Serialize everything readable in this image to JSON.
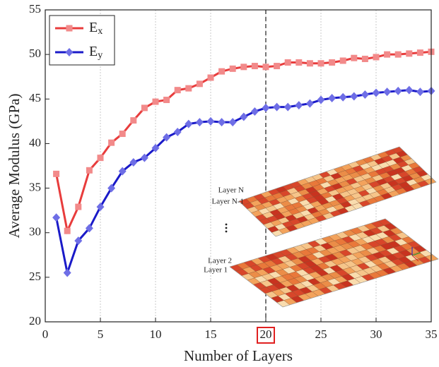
{
  "chart_data": {
    "type": "line",
    "x_label": "Number of Layers",
    "y_label": "Average Modulus (GPa)",
    "x": [
      1,
      2,
      3,
      4,
      5,
      6,
      7,
      8,
      9,
      10,
      11,
      12,
      13,
      14,
      15,
      16,
      17,
      18,
      19,
      20,
      21,
      22,
      23,
      24,
      25,
      26,
      27,
      28,
      29,
      30,
      31,
      32,
      33,
      34,
      35
    ],
    "series": [
      {
        "name": "Ex",
        "color": "#e83c3c",
        "marker_color": "#f28a8a",
        "marker": "square",
        "values": [
          36.6,
          30.2,
          32.9,
          37.0,
          38.4,
          40.1,
          41.1,
          42.6,
          44.0,
          44.7,
          44.9,
          46.0,
          46.2,
          46.7,
          47.4,
          48.1,
          48.4,
          48.6,
          48.7,
          48.6,
          48.7,
          49.1,
          49.1,
          49.0,
          49.0,
          49.1,
          49.3,
          49.6,
          49.5,
          49.7,
          50.0,
          50.0,
          50.1,
          50.2,
          50.3
        ]
      },
      {
        "name": "Ey",
        "color": "#1a1ac8",
        "marker_color": "#6e6ee6",
        "marker": "diamond",
        "values": [
          31.7,
          25.5,
          29.1,
          30.5,
          32.9,
          35.0,
          36.9,
          37.9,
          38.4,
          39.5,
          40.7,
          41.3,
          42.2,
          42.4,
          42.5,
          42.4,
          42.4,
          43.0,
          43.6,
          44.0,
          44.1,
          44.1,
          44.3,
          44.5,
          44.9,
          45.1,
          45.2,
          45.3,
          45.5,
          45.7,
          45.8,
          45.9,
          46.0,
          45.8,
          45.9
        ]
      }
    ],
    "xlim": [
      0,
      35
    ],
    "xticks": [
      0,
      5,
      10,
      15,
      20,
      25,
      30,
      35
    ],
    "ylim": [
      20,
      55
    ],
    "yticks": [
      20,
      25,
      30,
      35,
      40,
      45,
      50,
      55
    ],
    "grid": true,
    "highlight_x": 20,
    "legend": "upper left",
    "annotations": [
      "Layer N",
      "Layer N-1",
      "Layer 2",
      "Layer 1"
    ]
  }
}
